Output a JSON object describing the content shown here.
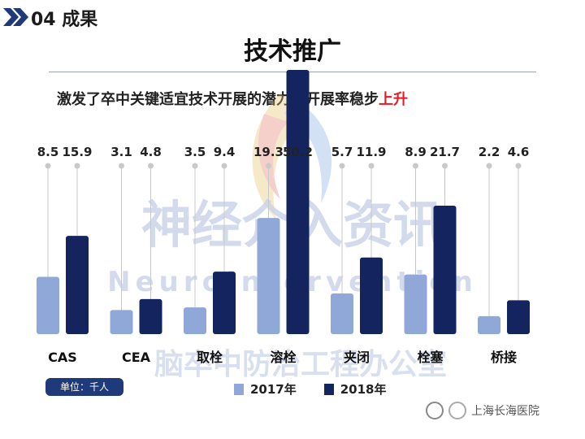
{
  "header": {
    "section": "04 成果",
    "title": "技术推广",
    "subtitle_main": "激发了卒中关键适宜技术开展的潜力，开展率稳步",
    "subtitle_highlight": "上升"
  },
  "watermark": {
    "line1": "神经介入资讯",
    "line2": "NeuroIntervention",
    "line3": "脑卒中防治工程办公室"
  },
  "unit_label": "单位：千人",
  "hospital": "上海长海医院",
  "colors": {
    "s2017": "#8fa8d8",
    "s2018": "#13245e",
    "accent": "#e31b23"
  },
  "chart_data": {
    "type": "bar",
    "categories": [
      "CAS",
      "CEA",
      "取栓",
      "溶栓",
      "夹闭",
      "栓塞",
      "桥接"
    ],
    "series": [
      {
        "name": "2017年",
        "values": [
          8.5,
          3.1,
          3.5,
          19.3,
          5.7,
          8.9,
          2.2
        ]
      },
      {
        "name": "2018年",
        "values": [
          15.9,
          4.8,
          9.4,
          50.2,
          11.9,
          21.7,
          4.6
        ]
      }
    ],
    "value_labels": [
      [
        "8.5",
        "15.9"
      ],
      [
        "3.1",
        "4.8"
      ],
      [
        "3.5",
        "9.4"
      ],
      [
        "19.3",
        "50.2"
      ],
      [
        "5.7",
        "11.9"
      ],
      [
        "8.9",
        "21.7"
      ],
      [
        "2.2",
        "4.6"
      ]
    ],
    "scale": "non-linear (display)",
    "legend": "bottom-center",
    "grid": false
  }
}
